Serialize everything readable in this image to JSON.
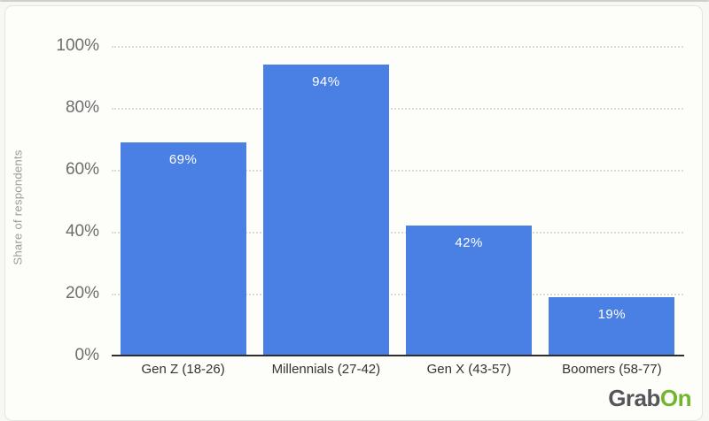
{
  "chart_data": {
    "type": "bar",
    "categories": [
      "Gen Z (18-26)",
      "Millennials (27-42)",
      "Gen X (43-57)",
      "Boomers (58-77)"
    ],
    "values": [
      69,
      94,
      42,
      19
    ],
    "value_labels": [
      "69%",
      "94%",
      "42%",
      "19%"
    ],
    "title": "",
    "xlabel": "",
    "ylabel": "Share of respondents",
    "ylim": [
      0,
      100
    ],
    "yticks": [
      0,
      20,
      40,
      60,
      80,
      100
    ],
    "ytick_labels": [
      "0%",
      "20%",
      "40%",
      "60%",
      "80%",
      "100%"
    ],
    "grid": "horizontal-dotted",
    "legend": "none",
    "bar_color": "#4a80e4",
    "value_label_color": "#ffffff"
  },
  "branding": {
    "logo_part1": "Grab",
    "logo_part2": "On",
    "logo_color1": "#55565a",
    "logo_color2": "#72b62c"
  }
}
